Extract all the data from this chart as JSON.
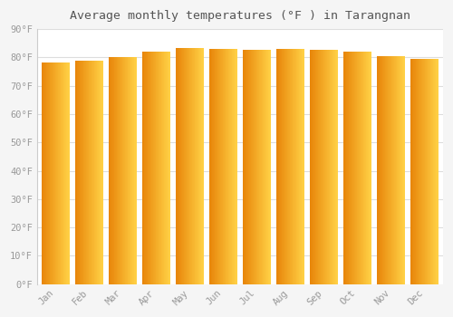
{
  "months": [
    "Jan",
    "Feb",
    "Mar",
    "Apr",
    "May",
    "Jun",
    "Jul",
    "Aug",
    "Sep",
    "Oct",
    "Nov",
    "Dec"
  ],
  "values": [
    78.1,
    79.0,
    80.2,
    82.0,
    83.5,
    83.1,
    82.6,
    83.1,
    82.6,
    82.0,
    80.6,
    79.5
  ],
  "bar_color_left": "#E8860A",
  "bar_color_right": "#FFD045",
  "background_color": "#F5F5F5",
  "plot_bg_color": "#FFFFFF",
  "grid_color": "#DDDDDD",
  "title": "Average monthly temperatures (°F ) in Tarangnan",
  "title_fontsize": 9.5,
  "tick_label_color": "#999999",
  "ylim": [
    0,
    90
  ],
  "yticks": [
    0,
    10,
    20,
    30,
    40,
    50,
    60,
    70,
    80,
    90
  ],
  "ytick_labels": [
    "0°F",
    "10°F",
    "20°F",
    "30°F",
    "40°F",
    "50°F",
    "60°F",
    "70°F",
    "80°F",
    "90°F"
  ]
}
